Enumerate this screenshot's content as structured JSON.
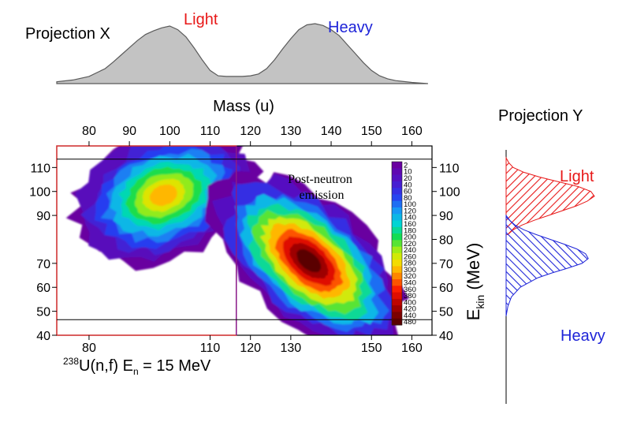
{
  "chart_data": [
    {
      "type": "area",
      "title": "Projection X",
      "x": [
        72,
        76,
        80,
        84,
        86,
        88,
        90,
        92,
        94,
        96,
        98,
        100,
        102,
        104,
        106,
        108,
        110,
        112,
        114,
        116,
        118,
        120,
        122,
        124,
        126,
        128,
        130,
        132,
        134,
        136,
        138,
        140,
        142,
        144,
        146,
        148,
        150,
        152,
        154,
        156,
        160,
        164
      ],
      "values": [
        0.03,
        0.06,
        0.12,
        0.25,
        0.36,
        0.48,
        0.6,
        0.72,
        0.82,
        0.88,
        0.93,
        0.96,
        0.9,
        0.78,
        0.6,
        0.4,
        0.22,
        0.13,
        0.12,
        0.12,
        0.12,
        0.13,
        0.16,
        0.25,
        0.4,
        0.58,
        0.75,
        0.9,
        0.98,
        1.0,
        0.97,
        0.9,
        0.8,
        0.65,
        0.5,
        0.35,
        0.22,
        0.13,
        0.08,
        0.05,
        0.02,
        0.0
      ],
      "annotations": [
        "Light",
        "Heavy"
      ]
    },
    {
      "type": "heatmap",
      "xlabel": "Mass (u)",
      "ylabel": "E_kin (MeV)",
      "xlim": [
        72,
        165
      ],
      "ylim": [
        40,
        119
      ],
      "top_ticks": [
        80,
        90,
        100,
        110,
        120,
        130,
        140,
        150,
        160
      ],
      "bottom_ticks": [
        80,
        110,
        120,
        130,
        150,
        160
      ],
      "left_ticks": [
        40,
        50,
        60,
        70,
        90,
        100,
        110
      ],
      "right_ticks": [
        40,
        50,
        60,
        70,
        80,
        90,
        100,
        110
      ],
      "annotations": [
        "Post-neutron emission"
      ],
      "reaction_label": {
        "mass": "238",
        "rest": "U(n,f) E",
        "sub": "n",
        "tail": " = 15 MeV"
      },
      "divider_mass": 116.5,
      "hlines": [
        113.5,
        46.5
      ],
      "red_box": {
        "x": [
          72,
          116.5
        ],
        "y": [
          40,
          119
        ]
      },
      "colorbar_labels": [
        "2",
        "10",
        "20",
        "40",
        "60",
        "80",
        "100",
        "120",
        "140",
        "160",
        "180",
        "200",
        "220",
        "240",
        "260",
        "280",
        "300",
        "320",
        "340",
        "360",
        "380",
        "400",
        "420",
        "440",
        "480"
      ],
      "clusters": [
        {
          "name": "Light",
          "mass": 98.5,
          "ekin": 98.5,
          "peak": 320
        },
        {
          "name": "Heavy",
          "mass": 134.5,
          "ekin": 71,
          "peak": 480
        }
      ]
    },
    {
      "type": "area",
      "title": "Projection Y",
      "series": [
        {
          "name": "Light",
          "color": "#e81818",
          "y": [
            82,
            84,
            86,
            88,
            90,
            92,
            94,
            96,
            98,
            100,
            102,
            104,
            106,
            108,
            110,
            112,
            114
          ],
          "values": [
            0.02,
            0.08,
            0.18,
            0.32,
            0.48,
            0.64,
            0.8,
            0.92,
            1.0,
            0.96,
            0.82,
            0.6,
            0.38,
            0.2,
            0.08,
            0.03,
            0.0
          ]
        },
        {
          "name": "Heavy",
          "color": "#1e24d8",
          "y": [
            48,
            52,
            56,
            60,
            64,
            66,
            68,
            70,
            72,
            74,
            76,
            78,
            80,
            82,
            84,
            86,
            88,
            90
          ],
          "values": [
            0.0,
            0.02,
            0.06,
            0.16,
            0.36,
            0.52,
            0.7,
            0.86,
            0.93,
            0.9,
            0.8,
            0.66,
            0.5,
            0.34,
            0.2,
            0.1,
            0.04,
            0.0
          ]
        }
      ]
    }
  ]
}
